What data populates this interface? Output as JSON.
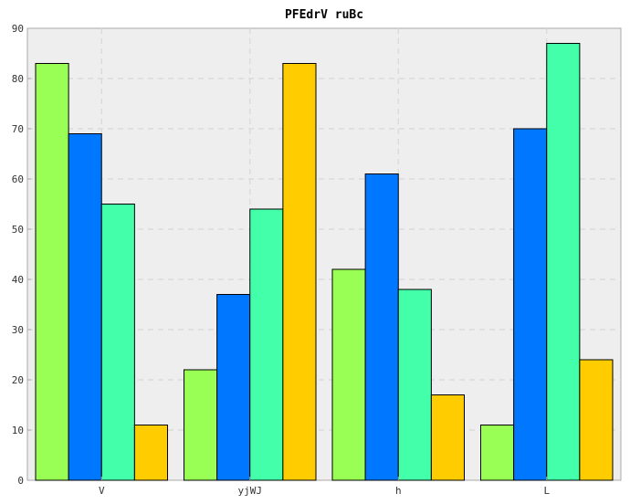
{
  "chart_data": {
    "type": "bar",
    "title": "PFEdrV ruBc",
    "xlabel": "",
    "ylabel": "",
    "categories": [
      "V",
      "yjWJ",
      "h",
      "L"
    ],
    "series": [
      {
        "values": [
          83,
          22,
          42,
          11
        ],
        "color": "#99ff55"
      },
      {
        "values": [
          69,
          37,
          61,
          70
        ],
        "color": "#0077ff"
      },
      {
        "values": [
          55,
          54,
          38,
          87
        ],
        "color": "#44ffaa"
      },
      {
        "values": [
          11,
          83,
          17,
          24
        ],
        "color": "#ffcc00"
      }
    ],
    "ylim": [
      0,
      90
    ],
    "yticks": [
      0,
      10,
      20,
      30,
      40,
      50,
      60,
      70,
      80,
      90
    ],
    "grid": true,
    "legend": "none",
    "background": "#eeeeee"
  }
}
